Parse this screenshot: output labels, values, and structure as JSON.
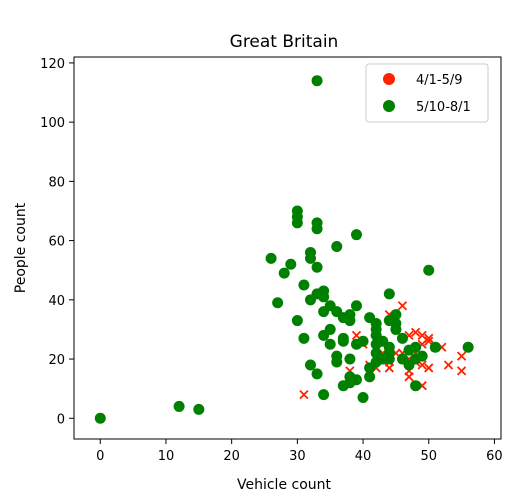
{
  "chart_data": {
    "type": "scatter",
    "title": "Great Britain",
    "xlabel": "Vehicle count",
    "ylabel": "People count",
    "xlim": [
      -4,
      61
    ],
    "ylim": [
      -7,
      122
    ],
    "xticks": [
      0,
      10,
      20,
      30,
      40,
      50,
      60
    ],
    "yticks": [
      0,
      20,
      40,
      60,
      80,
      100,
      120
    ],
    "grid": false,
    "legend_position": "top-right",
    "series": [
      {
        "name": "4/1-5/9",
        "color": "#ff2200",
        "marker": "x",
        "points": [
          [
            31,
            8
          ],
          [
            38,
            16
          ],
          [
            39,
            28
          ],
          [
            40,
            25
          ],
          [
            41,
            18
          ],
          [
            42,
            20
          ],
          [
            42,
            17
          ],
          [
            43,
            20
          ],
          [
            43,
            22
          ],
          [
            44,
            17
          ],
          [
            44,
            19
          ],
          [
            44,
            21
          ],
          [
            44,
            35
          ],
          [
            45,
            30
          ],
          [
            45,
            22
          ],
          [
            46,
            20
          ],
          [
            46,
            38
          ],
          [
            46,
            22
          ],
          [
            47,
            28
          ],
          [
            47,
            20
          ],
          [
            47,
            16
          ],
          [
            47,
            14
          ],
          [
            48,
            29
          ],
          [
            48,
            19
          ],
          [
            48,
            22
          ],
          [
            49,
            18
          ],
          [
            49,
            25
          ],
          [
            49,
            28
          ],
          [
            49,
            11
          ],
          [
            50,
            17
          ],
          [
            50,
            27
          ],
          [
            50,
            26
          ],
          [
            51,
            24
          ],
          [
            52,
            24
          ],
          [
            53,
            18
          ],
          [
            55,
            21
          ],
          [
            55,
            16
          ]
        ]
      },
      {
        "name": "5/10-8/1",
        "color": "#008000",
        "marker": "o",
        "points": [
          [
            0,
            0
          ],
          [
            12,
            4
          ],
          [
            15,
            3
          ],
          [
            26,
            54
          ],
          [
            27,
            39
          ],
          [
            28,
            49
          ],
          [
            29,
            52
          ],
          [
            30,
            70
          ],
          [
            30,
            68
          ],
          [
            30,
            66
          ],
          [
            30,
            33
          ],
          [
            31,
            45
          ],
          [
            31,
            27
          ],
          [
            32,
            56
          ],
          [
            32,
            54
          ],
          [
            32,
            40
          ],
          [
            32,
            18
          ],
          [
            33,
            114
          ],
          [
            33,
            66
          ],
          [
            33,
            64
          ],
          [
            33,
            51
          ],
          [
            33,
            42
          ],
          [
            33,
            15
          ],
          [
            34,
            43
          ],
          [
            34,
            41
          ],
          [
            34,
            36
          ],
          [
            34,
            28
          ],
          [
            34,
            8
          ],
          [
            35,
            38
          ],
          [
            35,
            30
          ],
          [
            35,
            25
          ],
          [
            36,
            58
          ],
          [
            36,
            36
          ],
          [
            36,
            21
          ],
          [
            36,
            19
          ],
          [
            37,
            34
          ],
          [
            37,
            27
          ],
          [
            37,
            26
          ],
          [
            37,
            11
          ],
          [
            38,
            35
          ],
          [
            38,
            33
          ],
          [
            38,
            20
          ],
          [
            38,
            12
          ],
          [
            38,
            14
          ],
          [
            39,
            62
          ],
          [
            39,
            38
          ],
          [
            39,
            25
          ],
          [
            39,
            13
          ],
          [
            40,
            26
          ],
          [
            40,
            7
          ],
          [
            41,
            34
          ],
          [
            41,
            17
          ],
          [
            41,
            14
          ],
          [
            42,
            32
          ],
          [
            42,
            30
          ],
          [
            42,
            28
          ],
          [
            42,
            25
          ],
          [
            42,
            22
          ],
          [
            42,
            19
          ],
          [
            43,
            26
          ],
          [
            43,
            20
          ],
          [
            44,
            42
          ],
          [
            44,
            33
          ],
          [
            44,
            24
          ],
          [
            44,
            22
          ],
          [
            44,
            20
          ],
          [
            45,
            35
          ],
          [
            45,
            32
          ],
          [
            45,
            30
          ],
          [
            46,
            20
          ],
          [
            46,
            27
          ],
          [
            47,
            23
          ],
          [
            47,
            18
          ],
          [
            48,
            24
          ],
          [
            48,
            11
          ],
          [
            48,
            20
          ],
          [
            49,
            21
          ],
          [
            50,
            50
          ],
          [
            51,
            24
          ],
          [
            56,
            24
          ]
        ]
      }
    ]
  }
}
